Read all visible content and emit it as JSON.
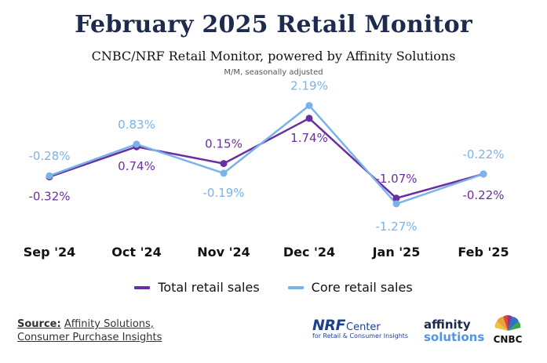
{
  "header": {
    "title": "February 2025 Retail Monitor",
    "subtitle": "CNBC/NRF Retail Monitor, powered by Affinity Solutions",
    "note": "M/M, seasonally adjusted"
  },
  "chart_data": {
    "type": "line",
    "categories": [
      "Sep '24",
      "Oct '24",
      "Nov '24",
      "Dec '24",
      "Jan '25",
      "Feb '25"
    ],
    "series": [
      {
        "name": "Total retail sales",
        "color": "#6a2fa3",
        "values": [
          -0.32,
          0.74,
          0.15,
          1.74,
          -1.07,
          -0.22
        ],
        "labels": [
          "-0.32%",
          "0.74%",
          "0.15%",
          "1.74%",
          "-1.07%",
          "-0.22%"
        ]
      },
      {
        "name": "Core retail sales",
        "color": "#7ab2ea",
        "values": [
          -0.28,
          0.83,
          -0.19,
          2.19,
          -1.27,
          -0.22
        ],
        "labels": [
          "-0.28%",
          "0.83%",
          "-0.19%",
          "2.19%",
          "-1.27%",
          "-0.22%"
        ]
      }
    ],
    "ylim": [
      -1.6,
      2.4
    ],
    "grid": false,
    "legend": "bottom"
  },
  "legend": {
    "total_label": "Total retail sales",
    "core_label": "Core retail sales"
  },
  "footer": {
    "source_label": "Source:",
    "source_line1": "Affinity Solutions,",
    "source_line2": "Consumer Purchase Insights"
  },
  "logos": {
    "nrf_main": "NRF",
    "nrf_center": "Center",
    "nrf_sub": "for Retail & Consumer Insights",
    "affinity_line1": "affinity",
    "affinity_line2": "solutions",
    "cnbc": "CNBC"
  }
}
